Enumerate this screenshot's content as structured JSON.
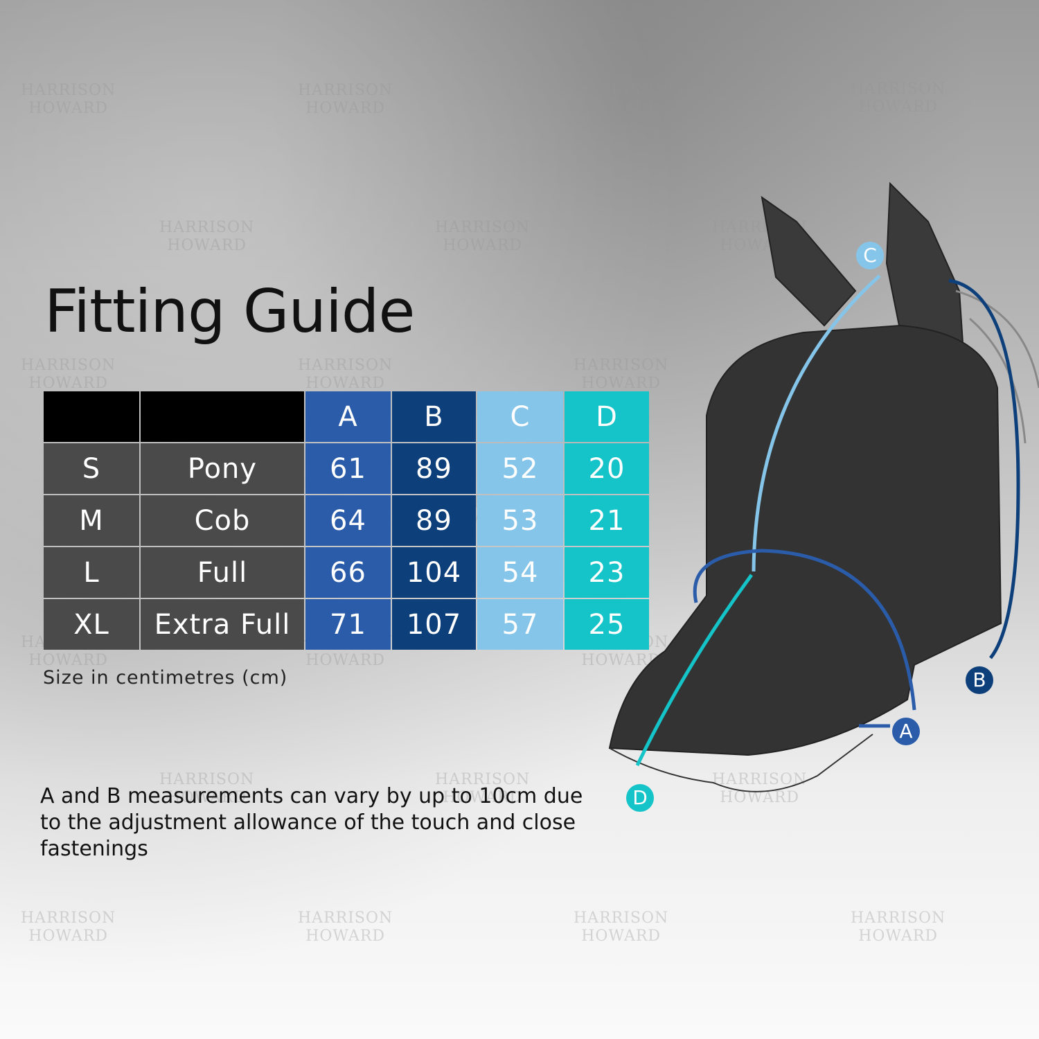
{
  "title": "Fitting Guide",
  "table": {
    "headers": [
      "",
      "",
      "A",
      "B",
      "C",
      "D"
    ],
    "rows": [
      [
        "S",
        "Pony",
        "61",
        "89",
        "52",
        "20"
      ],
      [
        "M",
        "Cob",
        "64",
        "89",
        "53",
        "21"
      ],
      [
        "L",
        "Full",
        "66",
        "104",
        "54",
        "23"
      ],
      [
        "XL",
        "Extra Full",
        "71",
        "107",
        "57",
        "25"
      ]
    ]
  },
  "unit_note": "Size in centimetres (cm)",
  "footnote": "A and B measurements can vary by up to 10cm due to the adjustment allowance of the touch and close fastenings",
  "diagram_labels": {
    "a": "A",
    "b": "B",
    "c": "C",
    "d": "D"
  },
  "watermark": {
    "line1": "HARRISON",
    "line2": "HOWARD"
  },
  "colors": {
    "A": "#2a5caa",
    "B": "#0d3f7a",
    "C": "#86c5ea",
    "D": "#14c4c8",
    "size_cells": "#4a4a4a"
  }
}
